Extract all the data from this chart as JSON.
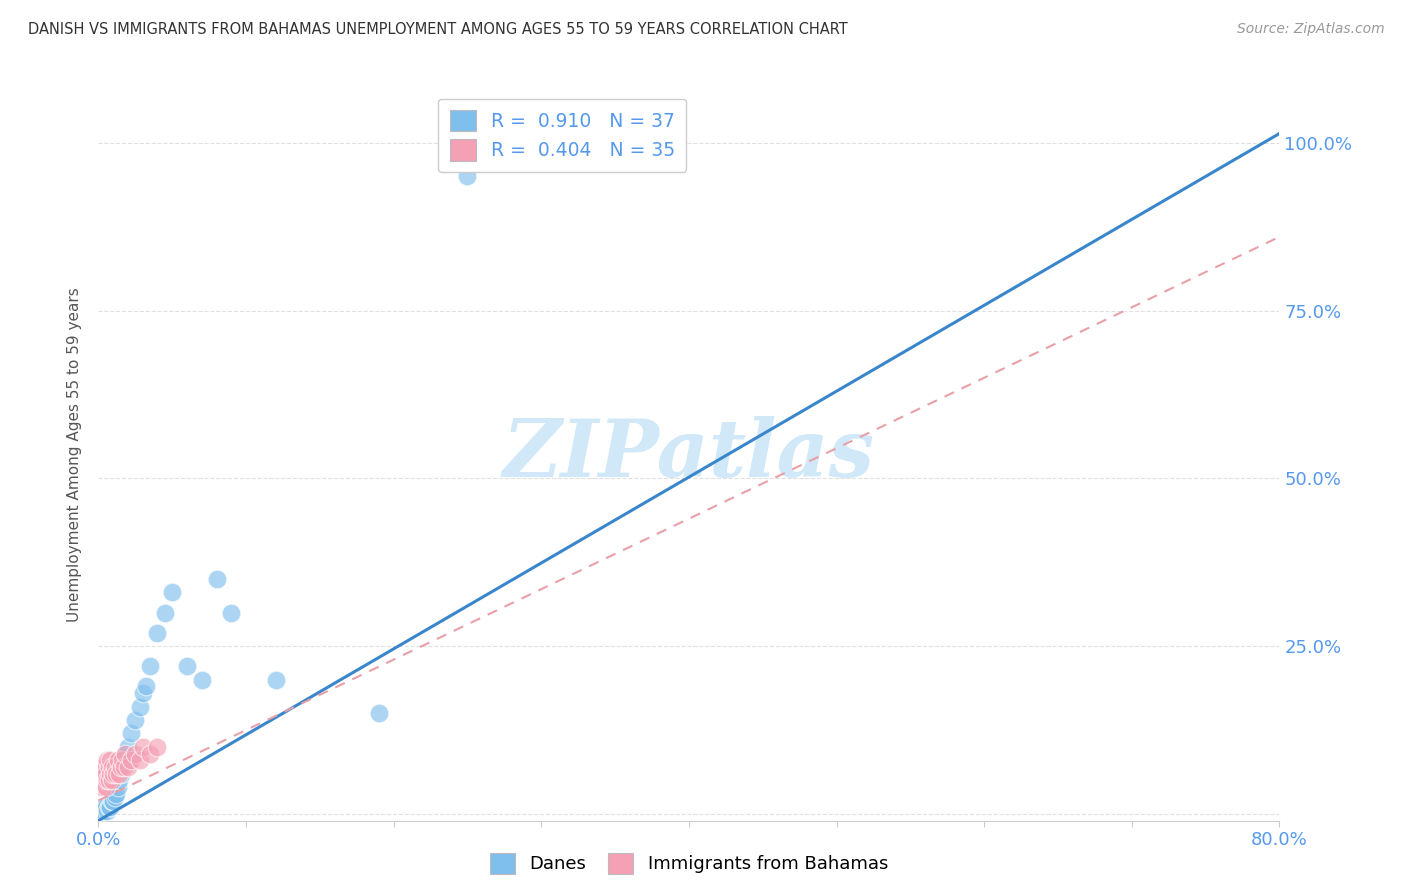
{
  "title": "DANISH VS IMMIGRANTS FROM BAHAMAS UNEMPLOYMENT AMONG AGES 55 TO 59 YEARS CORRELATION CHART",
  "source": "Source: ZipAtlas.com",
  "ylabel": "Unemployment Among Ages 55 to 59 years",
  "xlim": [
    0.0,
    0.8
  ],
  "ylim": [
    -0.01,
    1.08
  ],
  "yticks": [
    0.0,
    0.25,
    0.5,
    0.75,
    1.0
  ],
  "ytick_labels": [
    "",
    "25.0%",
    "50.0%",
    "75.0%",
    "100.0%"
  ],
  "xticks": [
    0.0,
    0.1,
    0.2,
    0.3,
    0.4,
    0.5,
    0.6,
    0.7,
    0.8
  ],
  "xtick_labels": [
    "0.0%",
    "",
    "",
    "",
    "",
    "",
    "",
    "",
    "80.0%"
  ],
  "blue_scatter_color": "#7fbfee",
  "pink_scatter_color": "#f4a0b5",
  "blue_line_color": "#3a86cc",
  "pink_line_color": "#e8a0a8",
  "axis_color": "#5599ee",
  "title_color": "#333333",
  "grid_color": "#e0e0e0",
  "watermark_color": "#d0e8f8",
  "legend_R_blue": "0.910",
  "legend_N_blue": "37",
  "legend_R_pink": "0.404",
  "legend_N_pink": "35",
  "blue_line_slope": 1.28,
  "blue_line_intercept": -0.01,
  "pink_line_slope": 1.05,
  "pink_line_intercept": 0.02,
  "danes_x": [
    0.001,
    0.002,
    0.002,
    0.003,
    0.003,
    0.004,
    0.004,
    0.005,
    0.006,
    0.007,
    0.008,
    0.009,
    0.01,
    0.011,
    0.012,
    0.013,
    0.014,
    0.015,
    0.017,
    0.018,
    0.02,
    0.022,
    0.025,
    0.028,
    0.03,
    0.032,
    0.035,
    0.04,
    0.045,
    0.05,
    0.06,
    0.07,
    0.08,
    0.09,
    0.12,
    0.19,
    0.25
  ],
  "danes_y": [
    0.005,
    0.01,
    0.005,
    0.01,
    0.005,
    0.01,
    0.005,
    0.01,
    0.005,
    0.01,
    0.01,
    0.02,
    0.02,
    0.025,
    0.03,
    0.04,
    0.05,
    0.06,
    0.08,
    0.09,
    0.1,
    0.12,
    0.14,
    0.16,
    0.18,
    0.19,
    0.22,
    0.27,
    0.3,
    0.33,
    0.22,
    0.2,
    0.35,
    0.3,
    0.2,
    0.15,
    0.95
  ],
  "immigrants_x": [
    0.0005,
    0.001,
    0.001,
    0.002,
    0.002,
    0.003,
    0.003,
    0.004,
    0.004,
    0.005,
    0.005,
    0.006,
    0.006,
    0.007,
    0.007,
    0.008,
    0.008,
    0.009,
    0.009,
    0.01,
    0.011,
    0.012,
    0.013,
    0.014,
    0.015,
    0.016,
    0.017,
    0.018,
    0.02,
    0.022,
    0.025,
    0.028,
    0.03,
    0.035,
    0.04
  ],
  "immigrants_y": [
    0.04,
    0.05,
    0.06,
    0.05,
    0.07,
    0.04,
    0.06,
    0.05,
    0.07,
    0.04,
    0.06,
    0.05,
    0.08,
    0.05,
    0.07,
    0.06,
    0.08,
    0.05,
    0.07,
    0.06,
    0.07,
    0.06,
    0.08,
    0.06,
    0.07,
    0.08,
    0.07,
    0.09,
    0.07,
    0.08,
    0.09,
    0.08,
    0.1,
    0.09,
    0.1
  ],
  "background_color": "#ffffff"
}
